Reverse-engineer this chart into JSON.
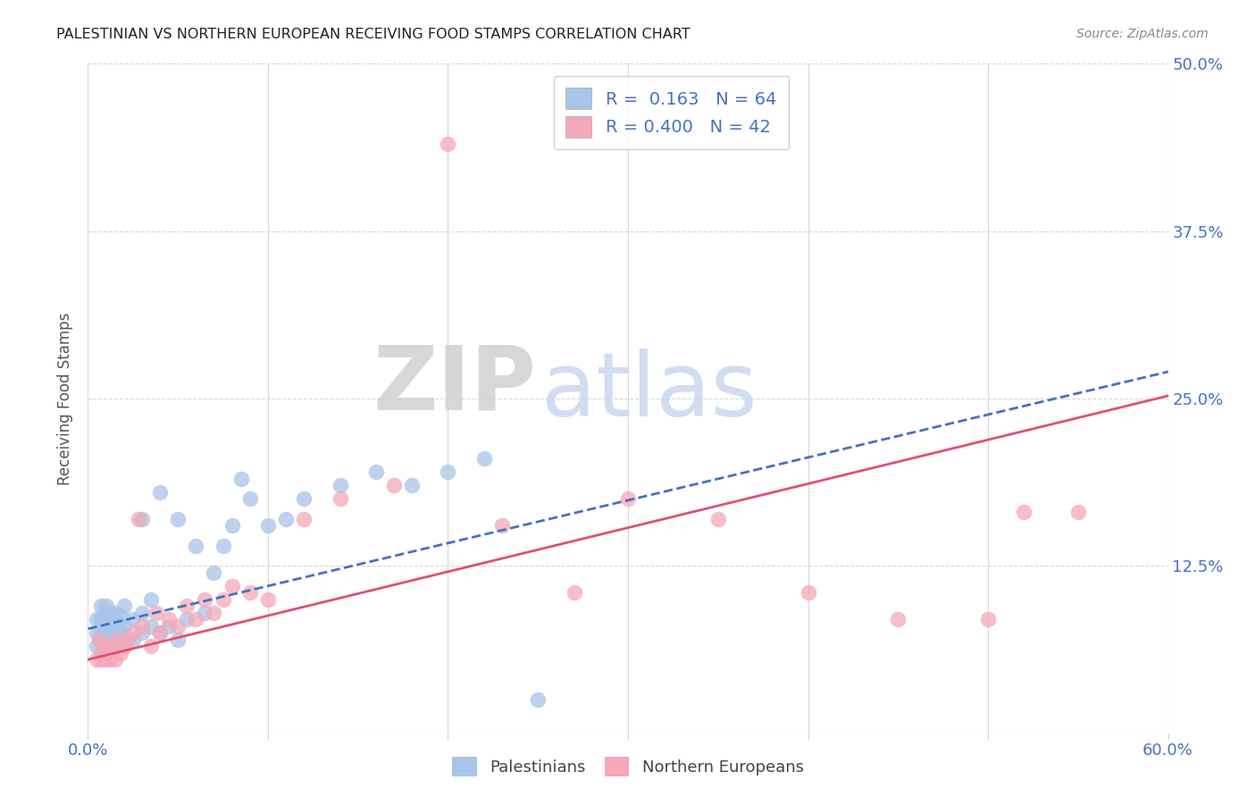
{
  "title": "PALESTINIAN VS NORTHERN EUROPEAN RECEIVING FOOD STAMPS CORRELATION CHART",
  "source": "Source: ZipAtlas.com",
  "ylabel": "Receiving Food Stamps",
  "x_ticks": [
    0.0,
    0.1,
    0.2,
    0.3,
    0.4,
    0.5,
    0.6
  ],
  "x_tick_labels": [
    "0.0%",
    "",
    "",
    "",
    "",
    "",
    "60.0%"
  ],
  "y_ticks": [
    0.0,
    0.125,
    0.25,
    0.375,
    0.5
  ],
  "y_tick_labels": [
    "",
    "12.5%",
    "25.0%",
    "37.5%",
    "50.0%"
  ],
  "xlim": [
    0.0,
    0.6
  ],
  "ylim": [
    0.0,
    0.5
  ],
  "legend_labels": [
    "Palestinians",
    "Northern Europeans"
  ],
  "blue_color": "#a8c4e8",
  "pink_color": "#f4a8b8",
  "blue_line_color": "#4472c4",
  "pink_line_color": "#e05070",
  "R_blue": 0.163,
  "N_blue": 64,
  "R_pink": 0.4,
  "N_pink": 42,
  "watermark_zip": "ZIP",
  "watermark_atlas": "atlas",
  "grid_color": "#d8d8d8",
  "background_color": "#ffffff",
  "tick_color": "#4472c4",
  "blue_scatter_x": [
    0.005,
    0.005,
    0.005,
    0.007,
    0.007,
    0.007,
    0.007,
    0.008,
    0.008,
    0.009,
    0.009,
    0.009,
    0.01,
    0.01,
    0.01,
    0.01,
    0.012,
    0.012,
    0.012,
    0.013,
    0.013,
    0.014,
    0.014,
    0.015,
    0.015,
    0.015,
    0.016,
    0.017,
    0.017,
    0.018,
    0.018,
    0.019,
    0.02,
    0.02,
    0.02,
    0.025,
    0.025,
    0.03,
    0.03,
    0.03,
    0.035,
    0.035,
    0.04,
    0.04,
    0.045,
    0.05,
    0.05,
    0.055,
    0.06,
    0.065,
    0.07,
    0.075,
    0.08,
    0.085,
    0.09,
    0.1,
    0.11,
    0.12,
    0.14,
    0.16,
    0.18,
    0.2,
    0.22,
    0.25
  ],
  "blue_scatter_y": [
    0.065,
    0.075,
    0.085,
    0.06,
    0.075,
    0.085,
    0.095,
    0.07,
    0.085,
    0.065,
    0.075,
    0.09,
    0.06,
    0.07,
    0.08,
    0.095,
    0.065,
    0.075,
    0.09,
    0.07,
    0.085,
    0.068,
    0.082,
    0.065,
    0.075,
    0.09,
    0.072,
    0.068,
    0.082,
    0.075,
    0.088,
    0.072,
    0.065,
    0.08,
    0.095,
    0.07,
    0.085,
    0.075,
    0.09,
    0.16,
    0.08,
    0.1,
    0.075,
    0.18,
    0.08,
    0.07,
    0.16,
    0.085,
    0.14,
    0.09,
    0.12,
    0.14,
    0.155,
    0.19,
    0.175,
    0.155,
    0.16,
    0.175,
    0.185,
    0.195,
    0.185,
    0.195,
    0.205,
    0.025
  ],
  "pink_scatter_x": [
    0.005,
    0.006,
    0.007,
    0.008,
    0.009,
    0.01,
    0.012,
    0.013,
    0.015,
    0.016,
    0.018,
    0.02,
    0.022,
    0.025,
    0.028,
    0.03,
    0.035,
    0.038,
    0.04,
    0.045,
    0.05,
    0.055,
    0.06,
    0.065,
    0.07,
    0.075,
    0.08,
    0.09,
    0.1,
    0.12,
    0.14,
    0.17,
    0.2,
    0.23,
    0.27,
    0.3,
    0.35,
    0.4,
    0.45,
    0.5,
    0.52,
    0.55
  ],
  "pink_scatter_y": [
    0.055,
    0.07,
    0.055,
    0.065,
    0.055,
    0.065,
    0.055,
    0.065,
    0.055,
    0.07,
    0.06,
    0.065,
    0.07,
    0.075,
    0.16,
    0.08,
    0.065,
    0.09,
    0.075,
    0.085,
    0.08,
    0.095,
    0.085,
    0.1,
    0.09,
    0.1,
    0.11,
    0.105,
    0.1,
    0.16,
    0.175,
    0.185,
    0.44,
    0.155,
    0.105,
    0.175,
    0.16,
    0.105,
    0.085,
    0.085,
    0.165,
    0.165
  ],
  "blue_line_x0": 0.0,
  "blue_line_y0": 0.078,
  "blue_line_x1": 0.6,
  "blue_line_y1": 0.27,
  "pink_line_x0": 0.0,
  "pink_line_y0": 0.055,
  "pink_line_x1": 0.6,
  "pink_line_y1": 0.252
}
